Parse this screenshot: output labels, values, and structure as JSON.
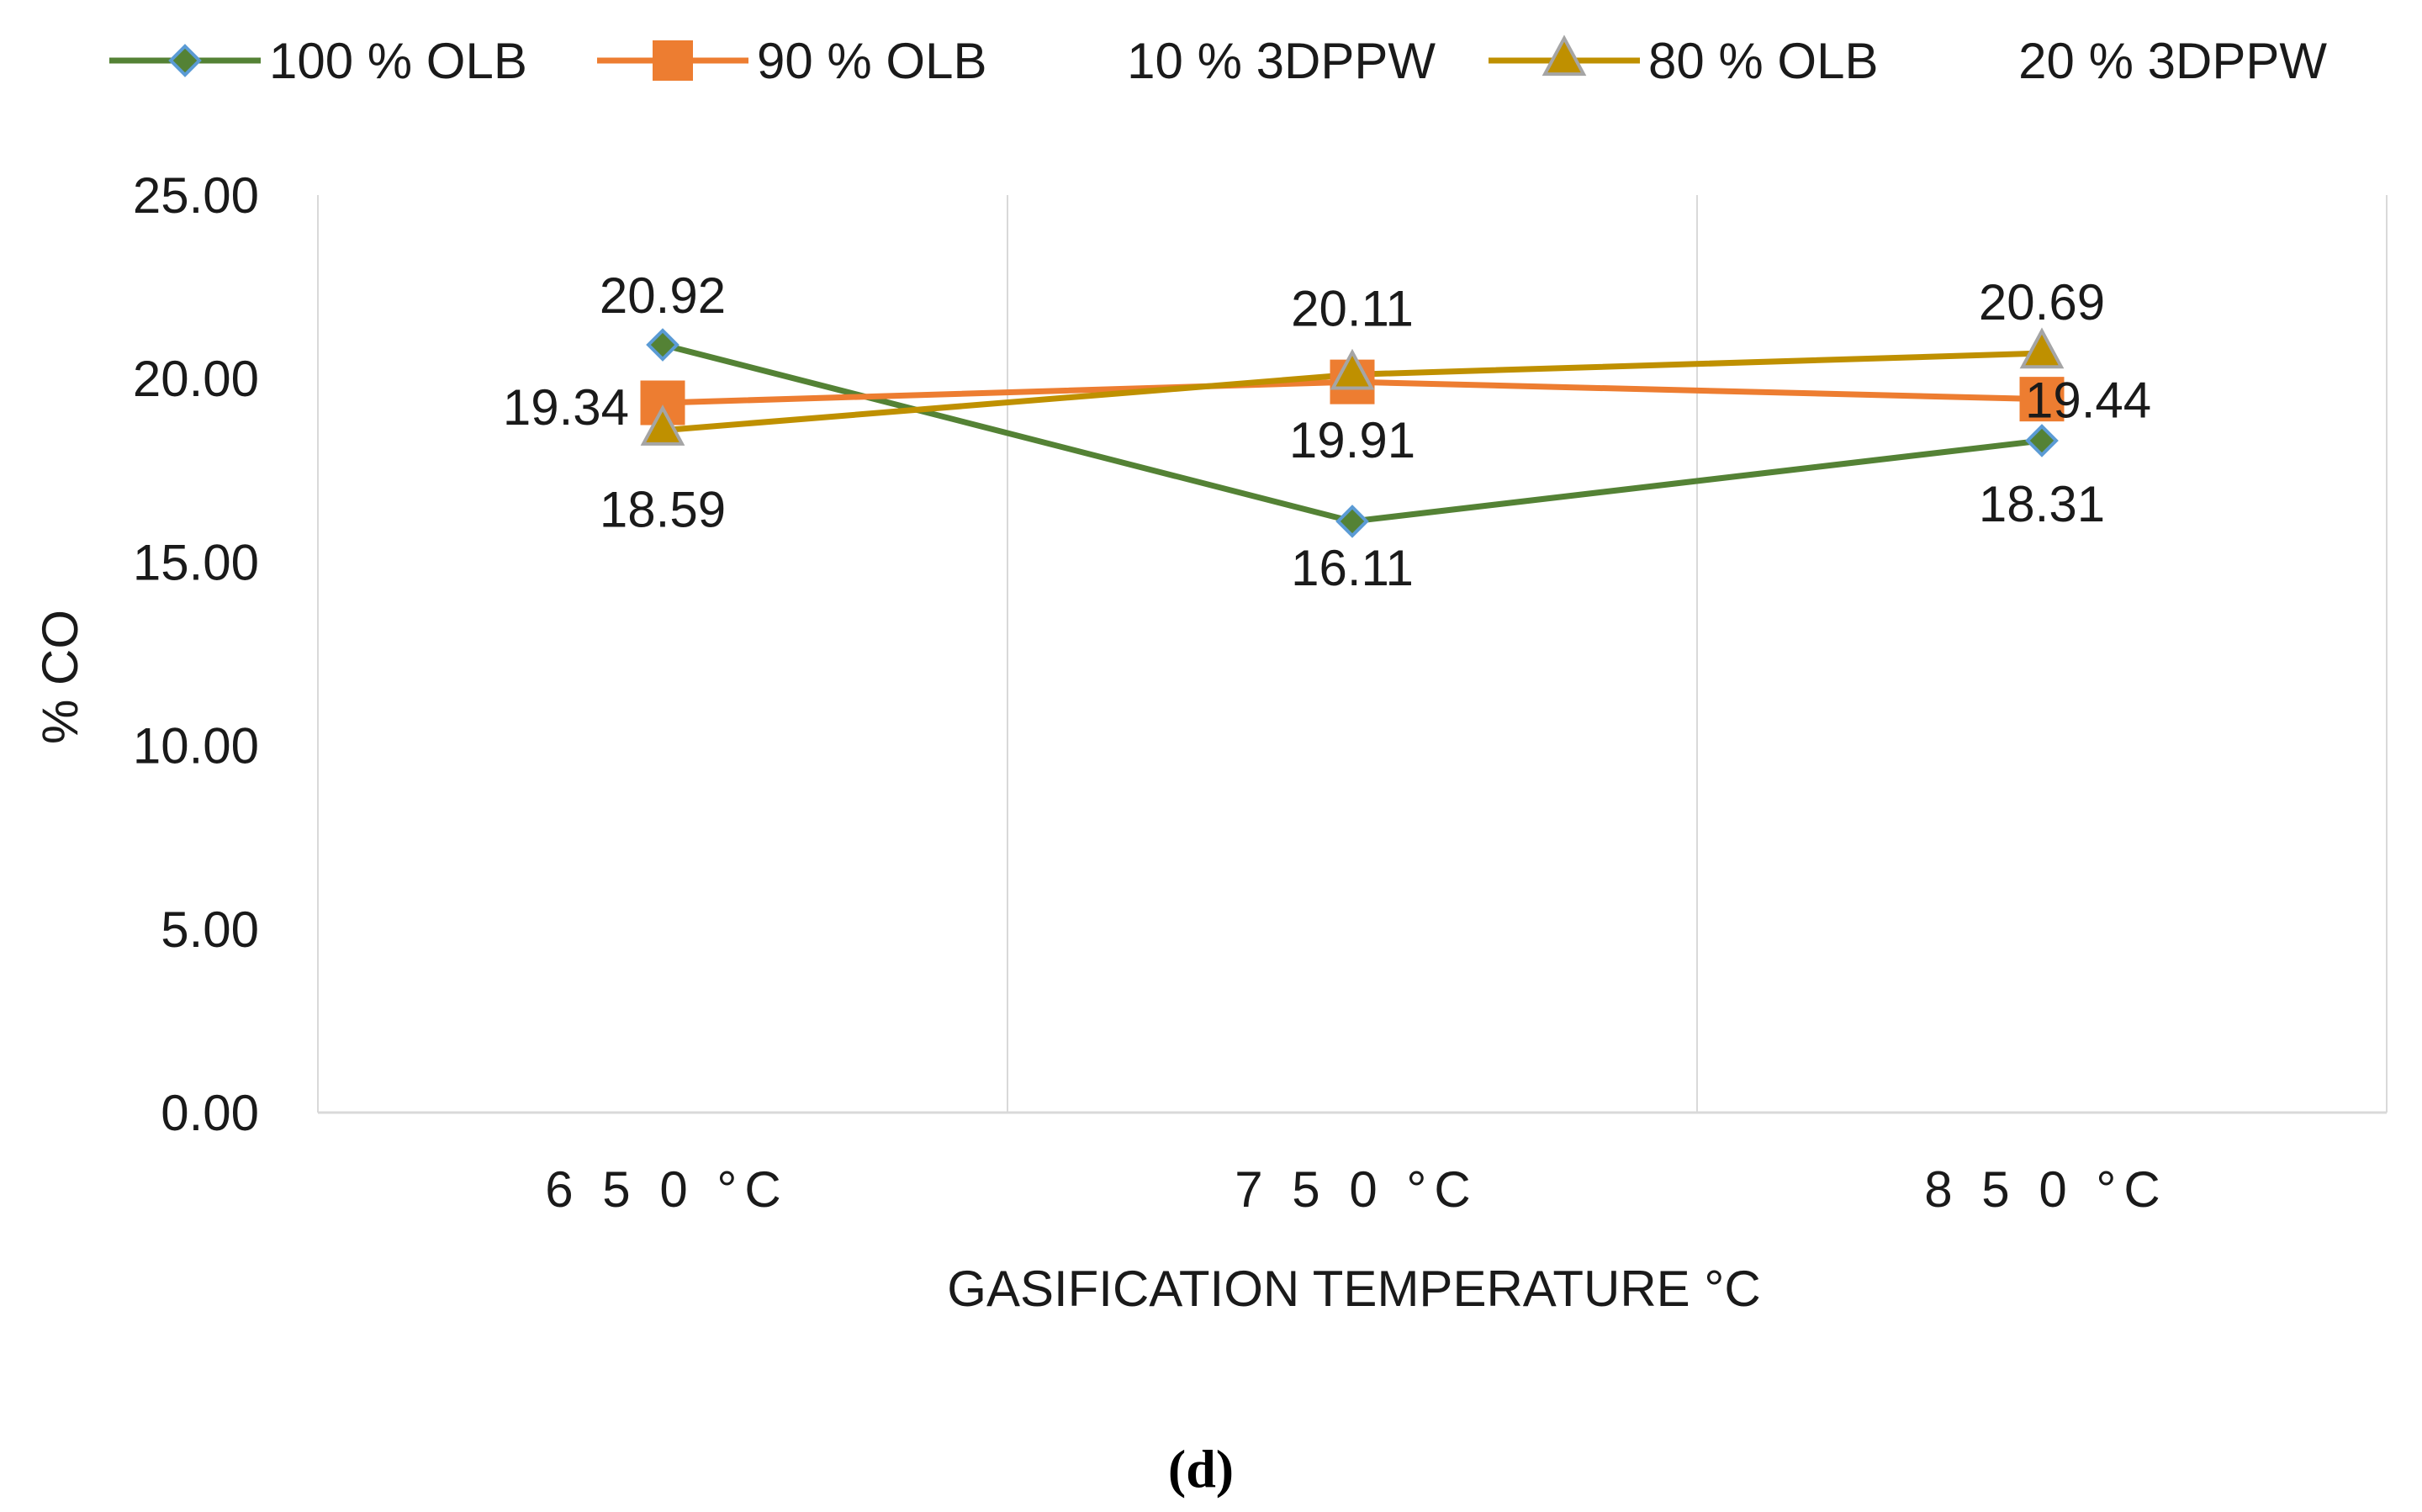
{
  "chart_data": {
    "type": "line",
    "title": "",
    "xlabel": "GASIFICATION TEMPERATURE °C",
    "ylabel": "% CO",
    "categories": [
      "6 5 0  °C",
      "7 5 0  °C",
      "8 5 0  °C"
    ],
    "ylim": [
      0,
      25
    ],
    "yticks": [
      "0.00",
      "5.00",
      "10.00",
      "15.00",
      "20.00",
      "25.00"
    ],
    "ytick_values": [
      0,
      5,
      10,
      15,
      20,
      25
    ],
    "grid": "vertical",
    "legend_position": "top",
    "series": [
      {
        "name": "100 % OLB",
        "values": [
          20.92,
          16.11,
          18.31
        ],
        "labels": [
          "20.92",
          "16.11",
          "18.31"
        ],
        "color": "#548235",
        "marker": "diamond",
        "marker_fill": "#548235",
        "marker_stroke": "#5b9bd5"
      },
      {
        "name": "90 % OLB          10 % 3DPPW",
        "values": [
          19.34,
          19.91,
          19.44
        ],
        "labels": [
          "19.34",
          "19.91",
          "19.44"
        ],
        "color": "#ed7d31",
        "marker": "square",
        "marker_fill": "#ed7d31",
        "marker_stroke": "#ed7d31"
      },
      {
        "name": "80 % OLB          20 % 3DPPW",
        "values": [
          18.59,
          20.11,
          20.69
        ],
        "labels": [
          "18.59",
          "20.11",
          "20.69"
        ],
        "color": "#bf9000",
        "marker": "triangle",
        "marker_fill": "#bf9000",
        "marker_stroke": "#a5a5a5"
      }
    ]
  },
  "panel_label": "(d)",
  "colors": {
    "gridline": "#d9d9d9",
    "axis": "#d9d9d9",
    "text": "#1a1a1a"
  }
}
